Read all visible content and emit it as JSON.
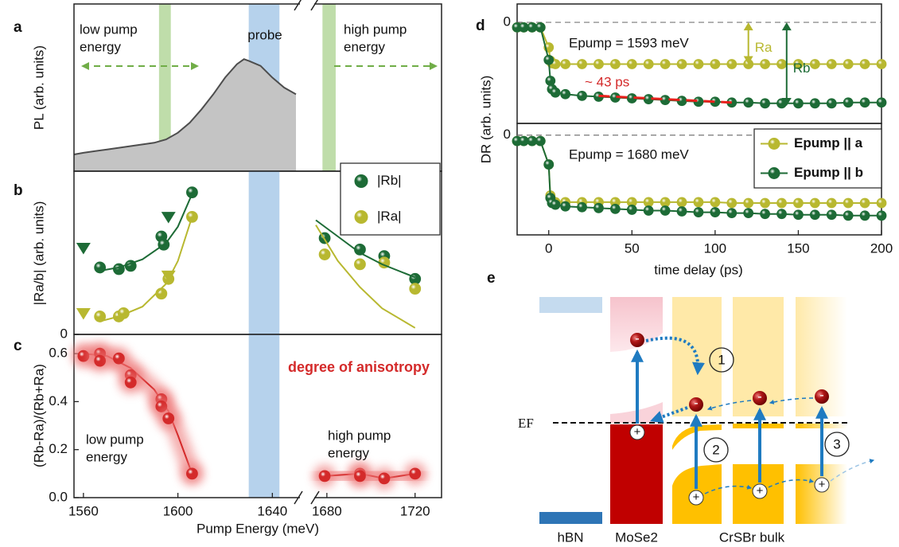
{
  "chart_data": [
    {
      "type": "area",
      "label": "a",
      "ylabel": "PL (arb. units)",
      "xlim_segments": [
        [
          1556,
          1651
        ],
        [
          1675,
          1732
        ]
      ],
      "ylim": [
        0,
        1
      ],
      "x": [
        1556,
        1560,
        1565,
        1570,
        1575,
        1580,
        1585,
        1590,
        1595,
        1600,
        1605,
        1610,
        1615,
        1620,
        1625,
        1628,
        1630,
        1635,
        1640,
        1645,
        1650
      ],
      "values": [
        0.1,
        0.11,
        0.12,
        0.13,
        0.14,
        0.15,
        0.16,
        0.17,
        0.19,
        0.23,
        0.29,
        0.37,
        0.46,
        0.56,
        0.64,
        0.67,
        0.66,
        0.63,
        0.56,
        0.5,
        0.46
      ],
      "color": "#c4c4c4",
      "line_color": "#4d4d4d",
      "bands": [
        {
          "range": [
            1592,
            1597
          ],
          "color": "#a9d18e"
        },
        {
          "range": [
            1678,
            1684
          ],
          "color": "#a9d18e"
        },
        {
          "range": [
            1630,
            1643
          ],
          "color": "#9dc3e6"
        }
      ],
      "annotations": [
        {
          "text": [
            "low pump",
            "energy"
          ]
        },
        {
          "text": [
            "probe"
          ]
        },
        {
          "text": [
            "high pump",
            "energy"
          ]
        }
      ]
    },
    {
      "type": "scatter",
      "label": "b",
      "ylabel": "|Ra/b| (arb. units)",
      "xlim_segments": [
        [
          1556,
          1651
        ],
        [
          1675,
          1732
        ]
      ],
      "ylim": [
        0,
        1
      ],
      "yticks": [
        0
      ],
      "legend": "upper right",
      "bands": [
        {
          "range": [
            1630,
            1643
          ],
          "color": "#9dc3e6"
        }
      ],
      "series": [
        {
          "name": "|Rb|",
          "color": "#1d6b36",
          "marker": "sphere",
          "x": [
            1567,
            1575,
            1580,
            1593,
            1594,
            1606,
            1679,
            1695,
            1706,
            1720
          ],
          "values": [
            0.41,
            0.4,
            0.42,
            0.6,
            0.55,
            0.87,
            0.59,
            0.52,
            0.48,
            0.34
          ]
        },
        {
          "name": "|Ra|",
          "color": "#b8b830",
          "marker": "sphere",
          "x": [
            1567,
            1575,
            1577,
            1593,
            1596,
            1606,
            1679,
            1695,
            1706,
            1720
          ],
          "values": [
            0.11,
            0.11,
            0.13,
            0.25,
            0.34,
            0.72,
            0.49,
            0.43,
            0.44,
            0.28
          ]
        },
        {
          "color": "#1d6b36",
          "marker": "triangle",
          "x": [
            1560,
            1596
          ],
          "values": [
            0.53,
            0.72
          ]
        },
        {
          "color": "#b8b830",
          "marker": "triangle",
          "x": [
            1560,
            1596
          ],
          "values": [
            0.13,
            0.36
          ]
        },
        {
          "color": "#1d6b36",
          "marker": "none",
          "x": [
            1567,
            1575,
            1585,
            1595,
            1600,
            1606
          ],
          "values": [
            0.39,
            0.41,
            0.46,
            0.56,
            0.66,
            0.86
          ]
        },
        {
          "color": "#1d6b36",
          "marker": "none",
          "x": [
            1675,
            1685,
            1695,
            1705,
            1720
          ],
          "values": [
            0.7,
            0.6,
            0.5,
            0.43,
            0.35
          ]
        },
        {
          "color": "#b8b830",
          "marker": "none",
          "x": [
            1567,
            1575,
            1585,
            1595,
            1600,
            1606
          ],
          "values": [
            0.08,
            0.11,
            0.17,
            0.31,
            0.45,
            0.72
          ]
        },
        {
          "color": "#b8b830",
          "marker": "none",
          "x": [
            1675,
            1685,
            1695,
            1705,
            1720
          ],
          "values": [
            0.67,
            0.45,
            0.29,
            0.16,
            0.04
          ]
        }
      ]
    },
    {
      "type": "scatter",
      "label": "c",
      "ylabel": "(Rb-Ra)/(Rb+Ra)",
      "xlabel": "Pump Energy (meV)",
      "xlim_segments": [
        [
          1556,
          1651
        ],
        [
          1675,
          1732
        ]
      ],
      "ylim": [
        0,
        0.68
      ],
      "xticks": [
        1560,
        1600,
        1640,
        1680,
        1720
      ],
      "yticks": [
        {
          "value": 0,
          "label": "0.0"
        },
        0.2,
        0.4,
        0.6
      ],
      "glow": "#ee7a7a",
      "bands": [
        {
          "range": [
            1630,
            1643
          ],
          "color": "#9dc3e6"
        }
      ],
      "series": [
        {
          "color": "#d42a2a",
          "marker": "none",
          "x": [
            1560,
            1570,
            1580,
            1590,
            1596,
            1600,
            1606
          ],
          "values": [
            0.6,
            0.59,
            0.54,
            0.45,
            0.36,
            0.26,
            0.1
          ]
        },
        {
          "color": "#d42a2a",
          "marker": "none",
          "x": [
            1679,
            1695,
            1706,
            1720
          ],
          "values": [
            0.09,
            0.1,
            0.08,
            0.1
          ]
        },
        {
          "color": "#d42a2a",
          "marker": "sphere",
          "x": [
            1560,
            1567,
            1567,
            1575,
            1580,
            1580,
            1593,
            1593,
            1596,
            1606,
            1679,
            1695,
            1695,
            1706,
            1720
          ],
          "values": [
            0.59,
            0.6,
            0.57,
            0.58,
            0.51,
            0.48,
            0.41,
            0.38,
            0.33,
            0.1,
            0.09,
            0.1,
            0.09,
            0.08,
            0.1
          ]
        }
      ],
      "annotations": [
        {
          "text": [
            "degree of anisotropy"
          ],
          "color": "#d42a2a"
        },
        {
          "text": [
            "low pump",
            "energy"
          ]
        },
        {
          "text": [
            "high pump",
            "energy"
          ]
        }
      ]
    },
    {
      "type": "line",
      "label": "d",
      "ylabel": "DR (arb. units)",
      "xlim": [
        -19,
        200
      ],
      "ylim": [
        -1.21,
        0.22
      ],
      "yticks": [
        0
      ],
      "grid": true,
      "x": [
        -19,
        -15,
        -10,
        -5,
        0,
        1,
        2,
        4,
        10,
        20,
        30,
        40,
        50,
        60,
        70,
        80,
        90,
        100,
        110,
        120,
        130,
        140,
        150,
        160,
        170,
        180,
        190,
        200
      ],
      "series": [
        {
          "color": "#b8b830",
          "marker": "sphere",
          "values": [
            -0.06,
            -0.06,
            -0.06,
            -0.06,
            -0.3,
            -0.46,
            -0.49,
            -0.5,
            -0.5,
            -0.5,
            -0.5,
            -0.5,
            -0.5,
            -0.5,
            -0.5,
            -0.5,
            -0.5,
            -0.5,
            -0.5,
            -0.5,
            -0.5,
            -0.5,
            -0.5,
            -0.5,
            -0.5,
            -0.5,
            -0.5,
            -0.5
          ]
        },
        {
          "color": "#1d6b36",
          "marker": "sphere",
          "values": [
            -0.06,
            -0.06,
            -0.06,
            -0.06,
            -0.45,
            -0.7,
            -0.8,
            -0.84,
            -0.86,
            -0.88,
            -0.89,
            -0.9,
            -0.91,
            -0.92,
            -0.93,
            -0.94,
            -0.95,
            -0.95,
            -0.96,
            -0.96,
            -0.97,
            -0.97,
            -0.97,
            -0.97,
            -0.97,
            -0.96,
            -0.96,
            -0.96
          ]
        },
        {
          "color": "#e8201c",
          "marker": "none",
          "line_style": "dashed",
          "x": [
            30,
            110
          ],
          "values": [
            -0.88,
            -0.96
          ]
        }
      ],
      "arrows": [
        {
          "label": "Ra",
          "x": 120,
          "values": [
            0,
            -0.5
          ],
          "color": "#b8b830"
        },
        {
          "label": "Rb",
          "x": 143,
          "values": [
            0,
            -1.0
          ],
          "color": "#1d6b36"
        }
      ],
      "annotations": [
        {
          "text": [
            "Epump = 1593 meV"
          ]
        },
        {
          "text": [
            "~ 43 ps"
          ],
          "color": "#d42a2a"
        }
      ]
    },
    {
      "type": "line",
      "xlabel": "time delay (ps)",
      "xlim": [
        -19,
        200
      ],
      "ylim": [
        -1.19,
        0.14
      ],
      "xticks": [
        0,
        50,
        100,
        150,
        200
      ],
      "yticks": [
        0
      ],
      "grid": true,
      "legend": "upper right",
      "x": [
        -19,
        -15,
        -10,
        -5,
        0,
        1,
        2,
        4,
        10,
        20,
        30,
        40,
        50,
        60,
        70,
        80,
        90,
        100,
        110,
        120,
        130,
        140,
        150,
        160,
        170,
        180,
        190,
        200
      ],
      "series": [
        {
          "name": "Epump || a",
          "color": "#b8b830",
          "marker": "sphere",
          "values": [
            -0.07,
            -0.07,
            -0.07,
            -0.07,
            -0.35,
            -0.72,
            -0.78,
            -0.8,
            -0.8,
            -0.8,
            -0.8,
            -0.8,
            -0.8,
            -0.8,
            -0.8,
            -0.8,
            -0.8,
            -0.8,
            -0.81,
            -0.81,
            -0.81,
            -0.81,
            -0.81,
            -0.81,
            -0.81,
            -0.81,
            -0.81,
            -0.81
          ]
        },
        {
          "name": "Epump || b",
          "color": "#1d6b36",
          "marker": "sphere",
          "values": [
            -0.07,
            -0.07,
            -0.07,
            -0.07,
            -0.35,
            -0.75,
            -0.81,
            -0.83,
            -0.85,
            -0.86,
            -0.87,
            -0.88,
            -0.89,
            -0.9,
            -0.9,
            -0.91,
            -0.92,
            -0.92,
            -0.93,
            -0.93,
            -0.94,
            -0.94,
            -0.95,
            -0.95,
            -0.95,
            -0.96,
            -0.96,
            -0.96
          ]
        }
      ],
      "annotations": [
        {
          "text": [
            "Epump = 1680 meV"
          ]
        }
      ]
    }
  ],
  "diagram": {
    "label": "e",
    "fermi_level": "EF",
    "steps": [
      "1",
      "2",
      "3"
    ],
    "electron": "-",
    "hole": "+",
    "layers": [
      "hBN",
      "MoSe2",
      "CrSBr bulk"
    ]
  }
}
